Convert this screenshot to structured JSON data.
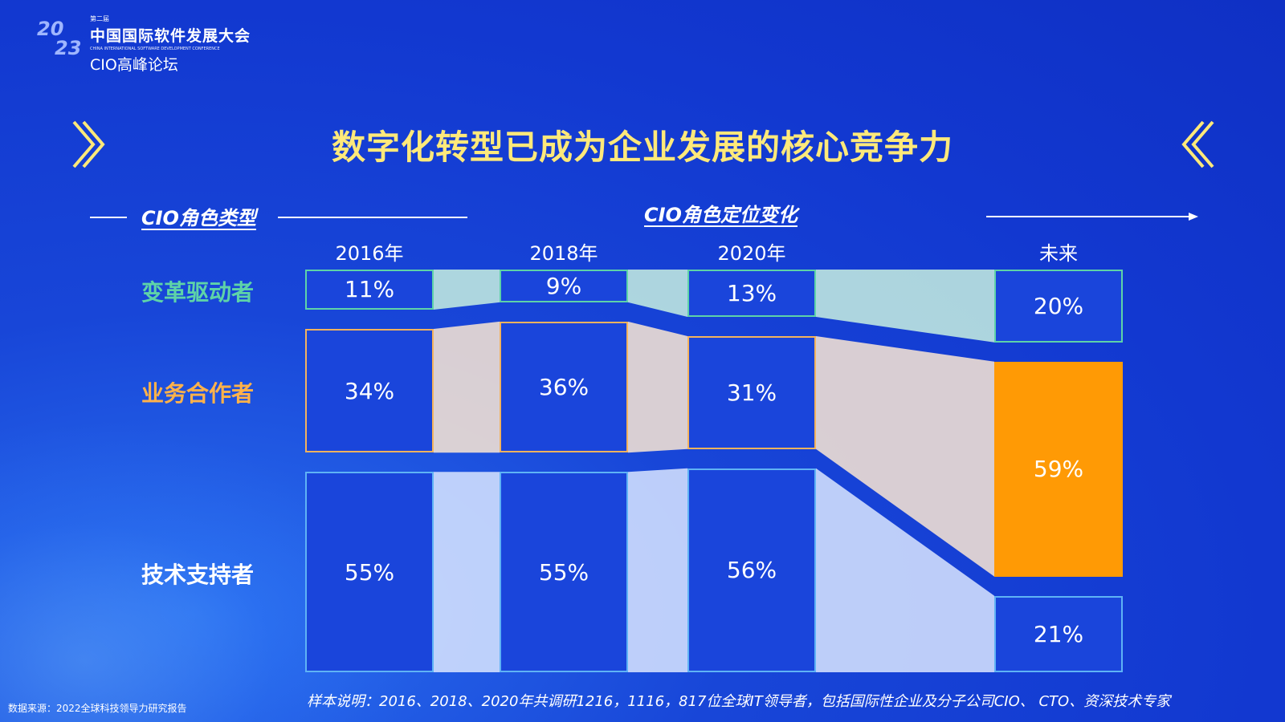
{
  "logo": {
    "year_top": "20",
    "year_bottom": "23",
    "edition": "第二届",
    "title": "中国国际软件发展大会",
    "subtitle_en": "CHINA INTERNATIONAL SOFTWARE DEVELOPMENT CONFERENCE",
    "forum": "CIO高峰论坛"
  },
  "title": "数字化转型已成为企业发展的核心竞争力",
  "left_header": "CIO角色类型",
  "right_header": "CIO角色定位变化",
  "colors": {
    "green": "#5ed3a8",
    "orange": "#ff9a05",
    "orange_border": "#f3b35e",
    "blue_border": "#5fb3f5",
    "title_yellow": "#ffe97a"
  },
  "chart_data": {
    "type": "table",
    "title": "数字化转型已成为企业发展的核心竞争力",
    "categories": [
      "2016年",
      "2018年",
      "2020年",
      "未来"
    ],
    "series": [
      {
        "name": "变革驱动者",
        "values": [
          11,
          9,
          13,
          20
        ],
        "labels": [
          "11%",
          "9%",
          "13%",
          "20%"
        ]
      },
      {
        "name": "业务合作者",
        "values": [
          34,
          36,
          31,
          59
        ],
        "labels": [
          "34%",
          "36%",
          "31%",
          "59%"
        ]
      },
      {
        "name": "技术支持者",
        "values": [
          55,
          55,
          56,
          21
        ],
        "labels": [
          "55%",
          "55%",
          "56%",
          "21%"
        ]
      }
    ]
  },
  "note": "样本说明：2016、2018、2020年共调研1216，1116，817位全球IT领导者，包括国际性企业及分子公司CIO、 CTO、资深技术专家",
  "source": "数据来源：2022全球科技领导力研究报告"
}
